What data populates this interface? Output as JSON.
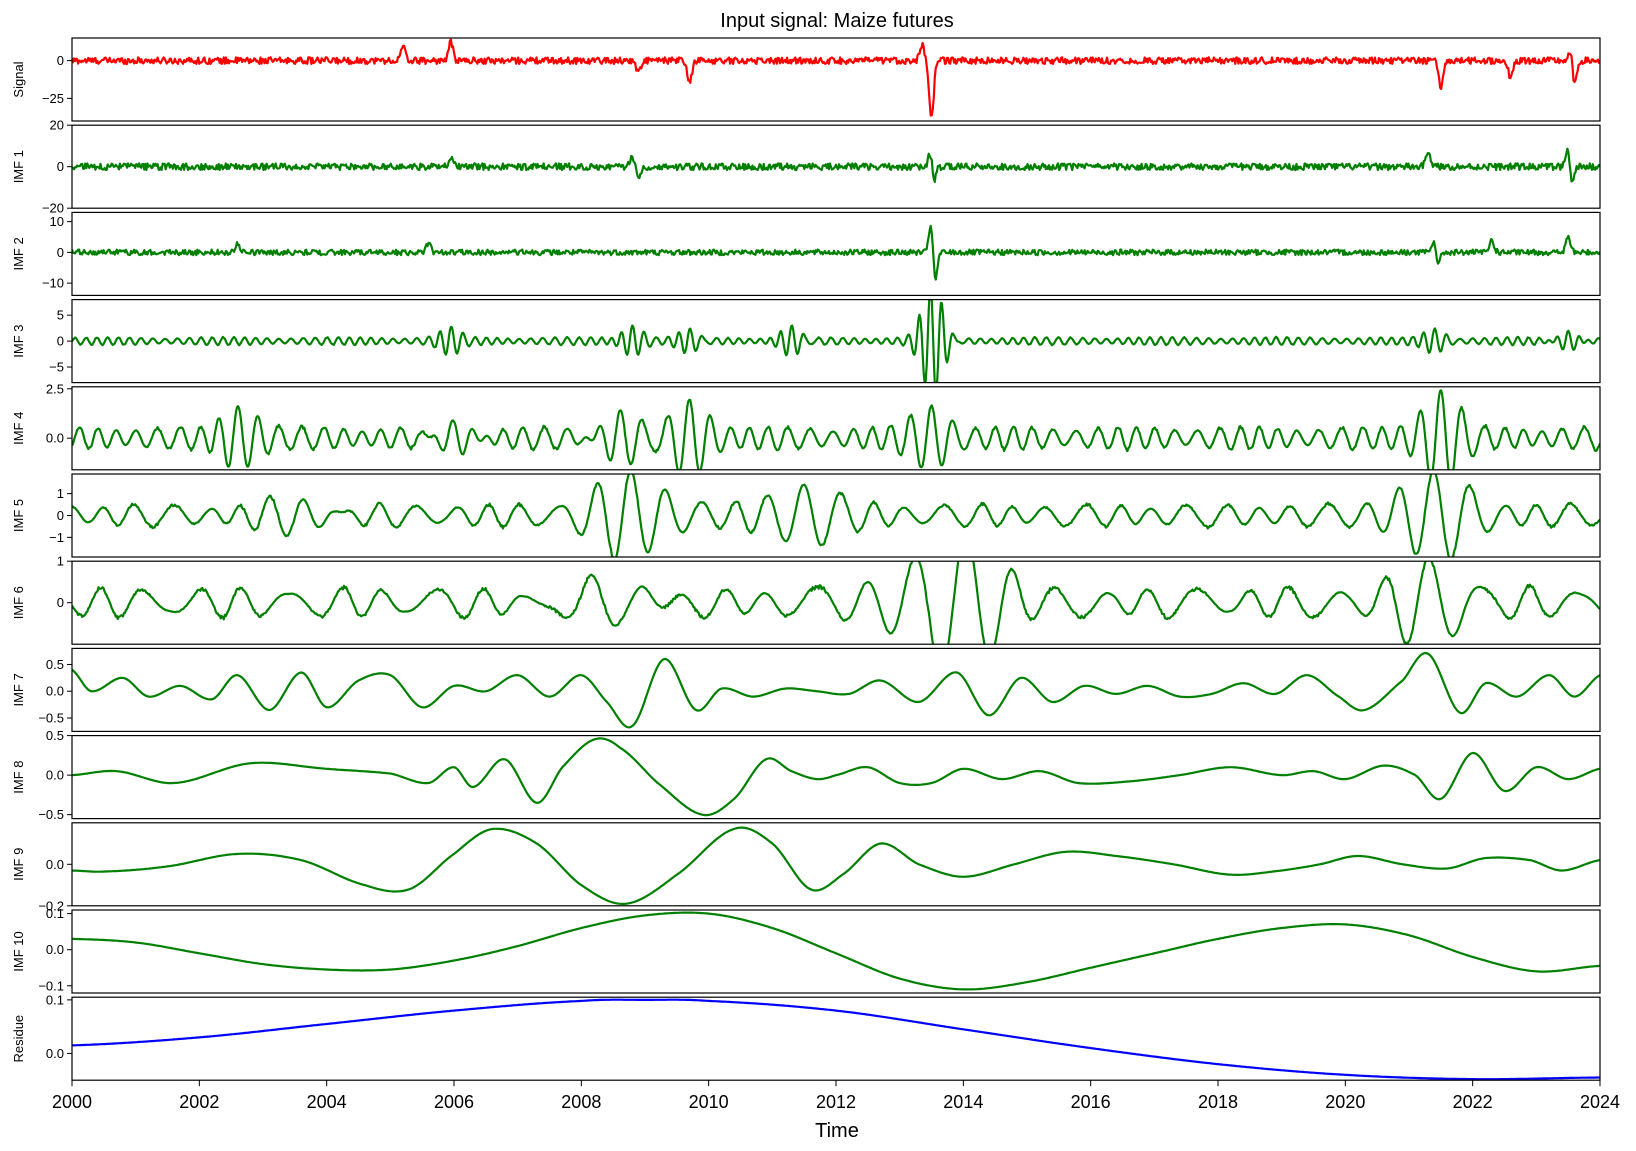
{
  "chart_data": {
    "type": "line",
    "title": "Input signal: Maize futures",
    "xlabel": "Time",
    "xlim": [
      2000,
      2024
    ],
    "x_ticks": [
      "2000",
      "2002",
      "2004",
      "2006",
      "2008",
      "2010",
      "2012",
      "2014",
      "2016",
      "2018",
      "2020",
      "2022",
      "2024"
    ],
    "panels": [
      {
        "name": "Signal",
        "color": "#ff0000",
        "ylim": [
          -40,
          15
        ],
        "yticks": [
          0,
          -25
        ],
        "ytick_labels": [
          "0",
          "−25"
        ],
        "style": "noise",
        "amplitude": 2.2,
        "bursts": [
          {
            "x": 2005.95,
            "y": 12
          },
          {
            "x": 2005.2,
            "y": 9
          },
          {
            "x": 2009.7,
            "y": -15
          },
          {
            "x": 2013.5,
            "y": -38
          },
          {
            "x": 2013.35,
            "y": 10
          },
          {
            "x": 2021.5,
            "y": -18
          },
          {
            "x": 2022.6,
            "y": -12
          },
          {
            "x": 2023.6,
            "y": -18
          },
          {
            "x": 2023.55,
            "y": 8
          },
          {
            "x": 2008.9,
            "y": -8
          }
        ]
      },
      {
        "name": "IMF 1",
        "color": "#008000",
        "ylim": [
          -20,
          20
        ],
        "yticks": [
          20,
          0,
          -20
        ],
        "ytick_labels": [
          "20",
          "0",
          "−20"
        ],
        "style": "noise",
        "amplitude": 1.6,
        "bursts": [
          {
            "x": 2013.5,
            "y": 18
          },
          {
            "x": 2013.52,
            "y": -18
          },
          {
            "x": 2023.5,
            "y": 10
          },
          {
            "x": 2023.55,
            "y": -10
          },
          {
            "x": 2005.95,
            "y": 5
          },
          {
            "x": 2021.3,
            "y": 8
          },
          {
            "x": 2008.8,
            "y": 5
          },
          {
            "x": 2008.9,
            "y": -5
          }
        ]
      },
      {
        "name": "IMF 2",
        "color": "#008000",
        "ylim": [
          -14,
          13
        ],
        "yticks": [
          10,
          0,
          -10
        ],
        "ytick_labels": [
          "10",
          "0",
          "−10"
        ],
        "style": "noise",
        "amplitude": 0.9,
        "bursts": [
          {
            "x": 2013.5,
            "y": 12
          },
          {
            "x": 2013.55,
            "y": -12
          },
          {
            "x": 2021.4,
            "y": 5
          },
          {
            "x": 2021.45,
            "y": -5
          },
          {
            "x": 2023.5,
            "y": 5
          },
          {
            "x": 2022.3,
            "y": 4
          },
          {
            "x": 2005.6,
            "y": 3
          },
          {
            "x": 2002.6,
            "y": 3
          }
        ]
      },
      {
        "name": "IMF 3",
        "color": "#008000",
        "ylim": [
          -8,
          8
        ],
        "yticks": [
          5,
          0,
          -5
        ],
        "ytick_labels": [
          "5",
          "0",
          "−5"
        ],
        "style": "wave",
        "amplitude": 0.7,
        "period": 0.18,
        "bursts": [
          {
            "x": 2013.5,
            "y": 7
          },
          {
            "x": 2013.55,
            "y": -7
          },
          {
            "x": 2005.95,
            "y": 2.5
          },
          {
            "x": 2008.8,
            "y": 2.8
          },
          {
            "x": 2021.4,
            "y": 2
          },
          {
            "x": 2023.5,
            "y": 2.5
          },
          {
            "x": 2011.3,
            "y": 3
          },
          {
            "x": 2009.7,
            "y": 2.5
          }
        ]
      },
      {
        "name": "IMF 4",
        "color": "#008000",
        "ylim": [
          -1.6,
          2.6
        ],
        "yticks": [
          2.5,
          0.0
        ],
        "ytick_labels": [
          "2.5",
          "0.0"
        ],
        "style": "wave",
        "amplitude": 0.55,
        "period": 0.32,
        "bursts": [
          {
            "x": 2002.6,
            "y": 1.3
          },
          {
            "x": 2008.6,
            "y": 1.7
          },
          {
            "x": 2009.7,
            "y": 1.5
          },
          {
            "x": 2013.5,
            "y": 1.2
          },
          {
            "x": 2021.5,
            "y": 2.0
          },
          {
            "x": 2006,
            "y": 1.2
          }
        ]
      },
      {
        "name": "IMF 5",
        "color": "#008000",
        "ylim": [
          -1.9,
          1.9
        ],
        "yticks": [
          1,
          0,
          -1
        ],
        "ytick_labels": [
          "1",
          "0",
          "−1"
        ],
        "style": "wave",
        "amplitude": 0.5,
        "period": 0.55,
        "bursts": [
          {
            "x": 2008.8,
            "y": 1.8
          },
          {
            "x": 2021.4,
            "y": 1.7
          },
          {
            "x": 2003.6,
            "y": 1.0
          },
          {
            "x": 2011.5,
            "y": 1.1
          }
        ]
      },
      {
        "name": "IMF 6",
        "color": "#008000",
        "ylim": [
          -1.0,
          1.0
        ],
        "yticks": [
          1,
          0
        ],
        "ytick_labels": [
          "1",
          "0"
        ],
        "style": "wave",
        "amplitude": 0.35,
        "period": 0.75,
        "bursts": [
          {
            "x": 2014.1,
            "y": 0.95
          },
          {
            "x": 2013.6,
            "y": -0.85
          },
          {
            "x": 2021.3,
            "y": 0.75
          },
          {
            "x": 2008.6,
            "y": -0.7
          }
        ]
      },
      {
        "name": "IMF 7",
        "color": "#008000",
        "ylim": [
          -0.75,
          0.8
        ],
        "yticks": [
          0.5,
          0.0,
          -0.5
        ],
        "ytick_labels": [
          "0.5",
          "0.0",
          "−0.5"
        ],
        "style": "smooth",
        "x": [
          2000,
          2000.3,
          2000.8,
          2001.2,
          2001.7,
          2002.2,
          2002.6,
          2003.1,
          2003.6,
          2004.0,
          2004.5,
          2005.0,
          2005.5,
          2006.0,
          2006.5,
          2007.0,
          2007.5,
          2008.0,
          2008.4,
          2008.8,
          2009.3,
          2009.8,
          2010.2,
          2010.7,
          2011.2,
          2011.7,
          2012.2,
          2012.7,
          2013.3,
          2013.9,
          2014.4,
          2014.9,
          2015.4,
          2015.9,
          2016.4,
          2016.9,
          2017.4,
          2017.9,
          2018.4,
          2018.9,
          2019.4,
          2019.9,
          2020.3,
          2020.9,
          2021.3,
          2021.8,
          2022.2,
          2022.7,
          2023.2,
          2023.6,
          2024.0
        ],
        "y": [
          0.4,
          0.0,
          0.25,
          -0.1,
          0.1,
          -0.15,
          0.3,
          -0.35,
          0.35,
          -0.3,
          0.2,
          0.3,
          -0.3,
          0.1,
          0.0,
          0.3,
          -0.1,
          0.3,
          -0.2,
          -0.65,
          0.6,
          -0.35,
          0.05,
          -0.1,
          0.05,
          0.0,
          -0.05,
          0.2,
          -0.2,
          0.35,
          -0.45,
          0.25,
          -0.2,
          0.1,
          -0.05,
          0.1,
          -0.1,
          -0.05,
          0.15,
          -0.05,
          0.3,
          -0.1,
          -0.35,
          0.2,
          0.7,
          -0.4,
          0.15,
          -0.1,
          0.3,
          -0.1,
          0.3
        ]
      },
      {
        "name": "IMF 8",
        "color": "#008000",
        "ylim": [
          -0.55,
          0.5
        ],
        "yticks": [
          0.5,
          0.0,
          -0.5
        ],
        "ytick_labels": [
          "0.5",
          "0.0",
          "−0.5"
        ],
        "style": "smooth",
        "x": [
          2000,
          2000.7,
          2001.6,
          2002.8,
          2004.0,
          2005.0,
          2005.6,
          2006.0,
          2006.3,
          2006.8,
          2007.3,
          2007.7,
          2008.2,
          2008.6,
          2009.2,
          2009.9,
          2010.4,
          2010.9,
          2011.3,
          2011.7,
          2012.0,
          2012.5,
          2013.0,
          2013.5,
          2014.0,
          2014.6,
          2015.2,
          2015.8,
          2016.6,
          2017.4,
          2018.2,
          2019.0,
          2019.5,
          2020.0,
          2020.6,
          2021.1,
          2021.5,
          2022.0,
          2022.5,
          2023.0,
          2023.5,
          2024.0
        ],
        "y": [
          0.0,
          0.05,
          -0.1,
          0.15,
          0.08,
          0.02,
          -0.1,
          0.1,
          -0.15,
          0.2,
          -0.35,
          0.1,
          0.45,
          0.35,
          -0.1,
          -0.5,
          -0.3,
          0.2,
          0.05,
          -0.05,
          0.0,
          0.1,
          -0.1,
          -0.1,
          0.08,
          -0.05,
          0.05,
          -0.1,
          -0.08,
          0.0,
          0.1,
          0.0,
          0.05,
          -0.05,
          0.12,
          0.0,
          -0.3,
          0.28,
          -0.2,
          0.1,
          -0.05,
          0.08
        ]
      },
      {
        "name": "IMF 9",
        "color": "#008000",
        "ylim": [
          -0.2,
          0.2
        ],
        "yticks": [
          0.0,
          -0.2
        ],
        "ytick_labels": [
          "0.0",
          "−0.2"
        ],
        "style": "smooth",
        "x": [
          2000,
          2000.5,
          2001.5,
          2002.6,
          2003.6,
          2004.6,
          2005.3,
          2006.0,
          2006.6,
          2007.3,
          2008.0,
          2008.7,
          2009.5,
          2010.4,
          2011.0,
          2011.6,
          2012.1,
          2012.7,
          2013.3,
          2014.0,
          2014.8,
          2015.6,
          2016.4,
          2017.3,
          2018.2,
          2019.0,
          2019.6,
          2020.2,
          2020.9,
          2021.6,
          2022.2,
          2022.9,
          2023.4,
          2024.0
        ],
        "y": [
          -0.03,
          -0.035,
          -0.01,
          0.05,
          0.02,
          -0.1,
          -0.12,
          0.05,
          0.17,
          0.1,
          -0.1,
          -0.19,
          -0.05,
          0.17,
          0.1,
          -0.12,
          -0.05,
          0.1,
          0.0,
          -0.06,
          0.0,
          0.06,
          0.04,
          0.0,
          -0.05,
          -0.03,
          0.0,
          0.04,
          0.0,
          -0.02,
          0.03,
          0.02,
          -0.03,
          0.02
        ]
      },
      {
        "name": "IMF 10",
        "color": "#008000",
        "ylim": [
          -0.12,
          0.11
        ],
        "yticks": [
          0.1,
          0.0,
          -0.1
        ],
        "ytick_labels": [
          "0.1",
          "0.0",
          "−0.1"
        ],
        "style": "smooth",
        "x": [
          2000,
          2001,
          2002,
          2003,
          2004,
          2005,
          2006,
          2007,
          2008,
          2009,
          2010,
          2011,
          2012,
          2013,
          2014,
          2015,
          2016,
          2017,
          2018,
          2019,
          2020,
          2021,
          2022,
          2023,
          2024
        ],
        "y": [
          0.03,
          0.02,
          -0.01,
          -0.04,
          -0.055,
          -0.055,
          -0.03,
          0.01,
          0.06,
          0.095,
          0.1,
          0.06,
          -0.01,
          -0.08,
          -0.11,
          -0.09,
          -0.05,
          -0.01,
          0.03,
          0.06,
          0.07,
          0.04,
          -0.02,
          -0.06,
          -0.045
        ]
      },
      {
        "name": "Residue",
        "color": "#0000ff",
        "ylim": [
          -0.05,
          0.105
        ],
        "yticks": [
          0.1,
          0.0
        ],
        "ytick_labels": [
          "0.1",
          "0.0"
        ],
        "style": "smooth",
        "x": [
          2000,
          2002,
          2004,
          2006,
          2008,
          2009,
          2010,
          2012,
          2014,
          2016,
          2018,
          2020,
          2022,
          2024
        ],
        "y": [
          0.015,
          0.03,
          0.055,
          0.08,
          0.098,
          0.1,
          0.098,
          0.08,
          0.045,
          0.01,
          -0.02,
          -0.04,
          -0.048,
          -0.045
        ]
      }
    ]
  }
}
